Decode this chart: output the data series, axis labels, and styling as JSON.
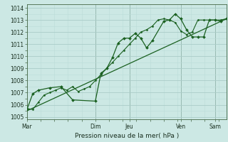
{
  "xlabel": "Pression niveau de la mer( hPa )",
  "bg_color": "#cce8e4",
  "grid_color_major": "#aaccc8",
  "grid_color_minor": "#bbddd8",
  "line_color": "#1a6020",
  "ylim": [
    1004.8,
    1014.3
  ],
  "yticks": [
    1005,
    1006,
    1007,
    1008,
    1009,
    1010,
    1011,
    1012,
    1013,
    1014
  ],
  "day_labels": [
    "Mar",
    "Dim",
    "Jeu",
    "Ven",
    "Sam"
  ],
  "day_positions": [
    0.0,
    0.343,
    0.514,
    0.771,
    0.943
  ],
  "xlim": [
    0.0,
    1.0
  ],
  "series_trend": {
    "x": [
      0.0,
      1.0
    ],
    "y": [
      1005.5,
      1013.1
    ]
  },
  "series1": {
    "x": [
      0.0,
      0.029,
      0.057,
      0.086,
      0.114,
      0.143,
      0.171,
      0.2,
      0.229,
      0.257,
      0.286,
      0.314,
      0.343,
      0.371,
      0.4,
      0.429,
      0.457,
      0.486,
      0.514,
      0.543,
      0.571,
      0.6,
      0.629,
      0.657,
      0.686,
      0.714,
      0.743,
      0.771,
      0.8,
      0.829,
      0.857,
      0.886,
      0.914,
      0.943,
      0.971,
      1.0
    ],
    "y": [
      1005.7,
      1005.6,
      1006.2,
      1006.8,
      1007.0,
      1007.2,
      1007.4,
      1007.2,
      1007.5,
      1007.1,
      1007.3,
      1007.5,
      1008.0,
      1008.5,
      1009.0,
      1009.5,
      1010.0,
      1010.5,
      1011.0,
      1011.5,
      1012.0,
      1012.2,
      1012.5,
      1013.0,
      1013.1,
      1013.0,
      1012.8,
      1012.1,
      1011.8,
      1012.0,
      1013.0,
      1013.0,
      1013.0,
      1013.0,
      1013.0,
      1013.1
    ]
  },
  "series2": {
    "x": [
      0.0,
      0.029,
      0.057,
      0.114,
      0.171,
      0.229,
      0.343,
      0.371,
      0.4,
      0.429,
      0.457,
      0.486,
      0.514,
      0.543,
      0.571,
      0.6,
      0.629,
      0.686,
      0.714,
      0.743,
      0.771,
      0.8,
      0.829,
      0.857,
      0.886,
      0.914,
      0.943,
      0.971,
      1.0
    ],
    "y": [
      1005.6,
      1006.9,
      1007.2,
      1007.4,
      1007.5,
      1006.4,
      1006.3,
      1008.6,
      1009.0,
      1009.9,
      1011.1,
      1011.5,
      1011.5,
      1011.9,
      1011.5,
      1010.7,
      1011.3,
      1012.9,
      1013.0,
      1013.5,
      1013.1,
      1012.2,
      1011.6,
      1011.6,
      1011.6,
      1013.0,
      1013.0,
      1012.9,
      1013.1
    ]
  }
}
